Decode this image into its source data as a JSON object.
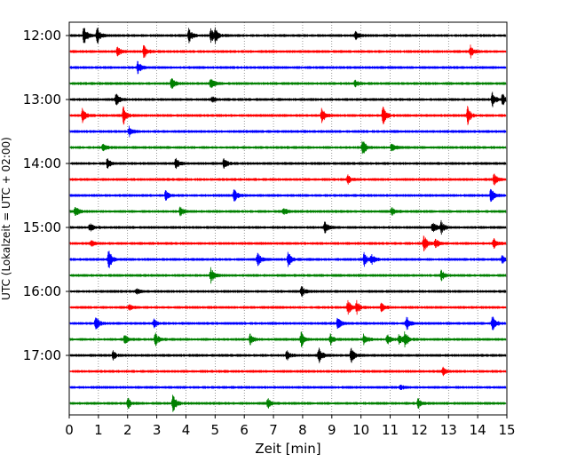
{
  "chart_data": {
    "type": "line",
    "xlabel": "Zeit  [min]",
    "ylabel": "UTC (Lokalzeit = UTC + 02:00)",
    "xlim": [
      0,
      15
    ],
    "x_ticks": [
      0,
      1,
      2,
      3,
      4,
      5,
      6,
      7,
      8,
      9,
      10,
      11,
      12,
      13,
      14,
      15
    ],
    "x_tick_labels": [
      "0",
      "1",
      "2",
      "3",
      "4",
      "5",
      "6",
      "7",
      "8",
      "9",
      "10",
      "11",
      "12",
      "13",
      "14",
      "15"
    ],
    "grid": "vertical dotted lines at each minute",
    "row_minutes": 15,
    "first_row": "12:00",
    "last_row": "17:45",
    "y_tick_labels": [
      "12:00",
      "13:00",
      "14:00",
      "15:00",
      "16:00",
      "17:00"
    ],
    "y_tick_rows": [
      0,
      4,
      8,
      12,
      16,
      20
    ],
    "colors": [
      "#000000",
      "#ff0000",
      "#0000ff",
      "#008000"
    ],
    "rows": [
      {
        "start": "12:00",
        "color": "#000000",
        "events": [
          [
            0.5,
            1.0
          ],
          [
            0.95,
            1.0
          ],
          [
            4.1,
            0.7
          ],
          [
            4.85,
            0.7
          ],
          [
            5.0,
            0.6
          ],
          [
            9.8,
            0.4
          ]
        ]
      },
      {
        "start": "12:15",
        "color": "#ff0000",
        "events": [
          [
            1.65,
            0.5
          ],
          [
            2.55,
            0.7
          ],
          [
            13.75,
            0.6
          ]
        ]
      },
      {
        "start": "12:30",
        "color": "#0000ff",
        "events": [
          [
            2.35,
            0.7
          ]
        ]
      },
      {
        "start": "12:45",
        "color": "#008000",
        "events": [
          [
            3.5,
            0.6
          ],
          [
            4.85,
            0.6
          ],
          [
            9.8,
            0.3
          ]
        ]
      },
      {
        "start": "13:00",
        "color": "#000000",
        "events": [
          [
            1.6,
            0.7
          ],
          [
            4.9,
            0.4
          ],
          [
            14.5,
            0.7
          ],
          [
            14.85,
            0.6
          ]
        ]
      },
      {
        "start": "13:15",
        "color": "#ff0000",
        "events": [
          [
            0.45,
            0.7
          ],
          [
            1.85,
            0.9
          ],
          [
            8.65,
            0.8
          ],
          [
            10.75,
            1.0
          ],
          [
            13.65,
            0.9
          ]
        ]
      },
      {
        "start": "13:30",
        "color": "#0000ff",
        "events": [
          [
            2.05,
            0.5
          ]
        ]
      },
      {
        "start": "13:45",
        "color": "#008000",
        "events": [
          [
            1.15,
            0.4
          ],
          [
            10.05,
            0.9
          ],
          [
            11.05,
            0.5
          ]
        ]
      },
      {
        "start": "14:00",
        "color": "#000000",
        "events": [
          [
            1.3,
            0.5
          ],
          [
            3.65,
            0.6
          ],
          [
            5.3,
            0.5
          ]
        ]
      },
      {
        "start": "14:15",
        "color": "#ff0000",
        "events": [
          [
            9.55,
            0.4
          ],
          [
            14.55,
            0.6
          ]
        ]
      },
      {
        "start": "14:30",
        "color": "#0000ff",
        "events": [
          [
            3.3,
            0.5
          ],
          [
            5.65,
            0.7
          ],
          [
            14.45,
            0.8
          ]
        ]
      },
      {
        "start": "14:45",
        "color": "#008000",
        "events": [
          [
            0.2,
            0.6
          ],
          [
            3.8,
            0.5
          ],
          [
            7.35,
            0.4
          ],
          [
            11.05,
            0.4
          ]
        ]
      },
      {
        "start": "15:00",
        "color": "#000000",
        "events": [
          [
            0.7,
            0.4
          ],
          [
            8.75,
            0.6
          ],
          [
            12.45,
            0.7
          ],
          [
            12.75,
            0.6
          ]
        ]
      },
      {
        "start": "15:15",
        "color": "#ff0000",
        "events": [
          [
            0.75,
            0.4
          ],
          [
            12.15,
            0.9
          ],
          [
            12.55,
            0.5
          ],
          [
            14.55,
            0.6
          ]
        ]
      },
      {
        "start": "15:30",
        "color": "#0000ff",
        "events": [
          [
            1.35,
            1.0
          ],
          [
            6.45,
            0.7
          ],
          [
            7.5,
            0.8
          ],
          [
            10.1,
            0.7
          ],
          [
            10.35,
            0.5
          ],
          [
            14.85,
            0.5
          ]
        ]
      },
      {
        "start": "15:45",
        "color": "#008000",
        "events": [
          [
            4.85,
            0.8
          ],
          [
            12.75,
            0.5
          ]
        ]
      },
      {
        "start": "16:00",
        "color": "#000000",
        "events": [
          [
            2.3,
            0.3
          ],
          [
            7.95,
            0.6
          ]
        ]
      },
      {
        "start": "16:15",
        "color": "#ff0000",
        "events": [
          [
            2.05,
            0.3
          ],
          [
            9.55,
            0.8
          ],
          [
            9.85,
            0.6
          ],
          [
            10.7,
            0.5
          ]
        ]
      },
      {
        "start": "16:30",
        "color": "#0000ff",
        "events": [
          [
            0.9,
            0.8
          ],
          [
            2.9,
            0.4
          ],
          [
            9.2,
            0.6
          ],
          [
            11.55,
            0.8
          ],
          [
            14.5,
            0.8
          ]
        ]
      },
      {
        "start": "16:45",
        "color": "#008000",
        "events": [
          [
            1.9,
            0.6
          ],
          [
            2.95,
            0.7
          ],
          [
            6.2,
            0.6
          ],
          [
            7.95,
            0.8
          ],
          [
            8.95,
            0.5
          ],
          [
            10.1,
            0.6
          ],
          [
            10.9,
            0.5
          ],
          [
            11.3,
            0.6
          ],
          [
            11.5,
            0.9
          ]
        ]
      },
      {
        "start": "17:00",
        "color": "#000000",
        "events": [
          [
            1.5,
            0.4
          ],
          [
            7.45,
            0.6
          ],
          [
            8.55,
            1.0
          ],
          [
            9.65,
            0.9
          ]
        ]
      },
      {
        "start": "17:15",
        "color": "#ff0000",
        "events": [
          [
            12.8,
            0.4
          ]
        ]
      },
      {
        "start": "17:30",
        "color": "#0000ff",
        "events": [
          [
            11.35,
            0.2
          ]
        ]
      },
      {
        "start": "17:45",
        "color": "#008000",
        "events": [
          [
            2.0,
            0.6
          ],
          [
            3.55,
            0.9
          ],
          [
            6.8,
            0.5
          ],
          [
            11.95,
            0.5
          ]
        ]
      }
    ]
  }
}
